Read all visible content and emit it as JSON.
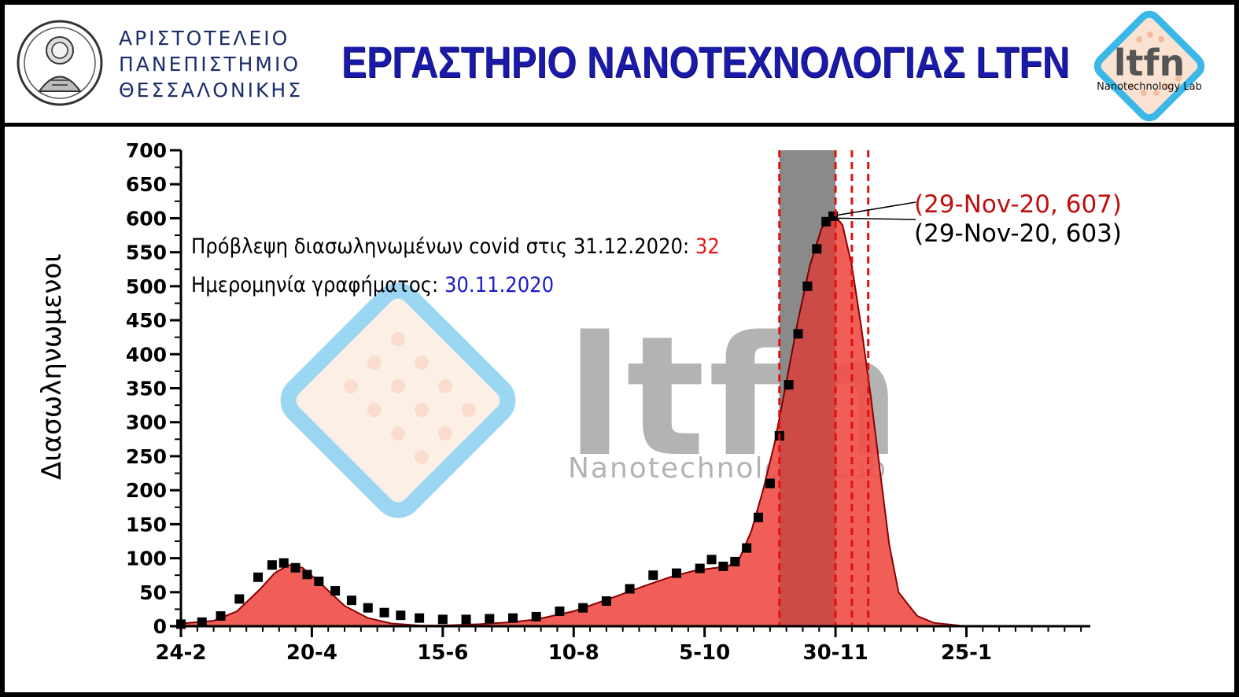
{
  "header": {
    "university_lines": [
      "ΑΡΙΣΤΟΤΕΛΕΙΟ",
      "ΠΑΝΕΠΙΣΤΗΜΙΟ",
      "ΘΕΣΣΑΛΟΝΙΚΗΣ"
    ],
    "lab_title": "ΕΡΓΑΣΤΗΡΙΟ ΝΑΝΟΤΕΧΝΟΛΟΓΙΑΣ LTFN",
    "logo_text": "ltfn",
    "logo_subtext": "Nanotechnology Lab"
  },
  "watermark": {
    "text": "ltfn",
    "subtext": "Nanotechnology Lab"
  },
  "notes": {
    "forecast_label": "Πρόβλεψη διασωληνωμένων covid στις 31.12.2020: ",
    "forecast_value": "32",
    "date_label": "Ημερομηνία γραφήματος: ",
    "date_value": "30.11.2020"
  },
  "colors": {
    "model_fill": "#f0504a",
    "model_line": "#8a0000",
    "data_points": "#000000",
    "highlight_band": "#9e9e9e",
    "vlines": "#e01010",
    "title_blue": "#1a1aa8"
  },
  "chart_data": {
    "type": "area",
    "ylabel": "Διασωληνωμενοι",
    "xlabel": "",
    "ylim": [
      0,
      700
    ],
    "yticks": [
      0,
      50,
      100,
      150,
      200,
      250,
      300,
      350,
      400,
      450,
      500,
      550,
      600,
      650,
      700
    ],
    "xlim": [
      "2020-02-24",
      "2021-03-19"
    ],
    "xticks": [
      {
        "label": "24-2",
        "date": "2020-02-24"
      },
      {
        "label": "20-4",
        "date": "2020-04-20"
      },
      {
        "label": "15-6",
        "date": "2020-06-15"
      },
      {
        "label": "10-8",
        "date": "2020-08-10"
      },
      {
        "label": "5-10",
        "date": "2020-10-05"
      },
      {
        "label": "30-11",
        "date": "2020-11-30"
      },
      {
        "label": "25-1",
        "date": "2021-01-25"
      }
    ],
    "highlight_band": [
      "2020-11-06",
      "2020-11-30"
    ],
    "vlines_dashed": [
      "2020-11-06",
      "2020-11-30",
      "2020-12-07",
      "2020-12-14"
    ],
    "annotations": [
      {
        "text": "(29-Nov-20, 607)",
        "series": "model",
        "date": "2020-11-29",
        "value": 607,
        "color": "#c01010"
      },
      {
        "text": "(29-Nov-20, 603)",
        "series": "data",
        "date": "2020-11-29",
        "value": 603,
        "color": "#000000"
      }
    ],
    "series": [
      {
        "kind": "model_area",
        "points": [
          [
            "2020-02-24",
            4
          ],
          [
            "2020-03-09",
            8
          ],
          [
            "2020-03-19",
            22
          ],
          [
            "2020-03-29",
            55
          ],
          [
            "2020-04-04",
            78
          ],
          [
            "2020-04-10",
            90
          ],
          [
            "2020-04-16",
            86
          ],
          [
            "2020-04-24",
            62
          ],
          [
            "2020-05-04",
            30
          ],
          [
            "2020-05-14",
            12
          ],
          [
            "2020-05-24",
            4
          ],
          [
            "2020-06-05",
            1
          ],
          [
            "2020-06-15",
            1
          ],
          [
            "2020-07-01",
            3
          ],
          [
            "2020-07-15",
            6
          ],
          [
            "2020-07-25",
            10
          ],
          [
            "2020-08-10",
            22
          ],
          [
            "2020-08-25",
            40
          ],
          [
            "2020-09-10",
            60
          ],
          [
            "2020-09-20",
            72
          ],
          [
            "2020-10-01",
            82
          ],
          [
            "2020-10-08",
            85
          ],
          [
            "2020-10-15",
            88
          ],
          [
            "2020-10-20",
            100
          ],
          [
            "2020-10-25",
            140
          ],
          [
            "2020-10-30",
            200
          ],
          [
            "2020-11-04",
            270
          ],
          [
            "2020-11-09",
            360
          ],
          [
            "2020-11-14",
            450
          ],
          [
            "2020-11-19",
            530
          ],
          [
            "2020-11-24",
            585
          ],
          [
            "2020-11-29",
            607
          ],
          [
            "2020-12-03",
            590
          ],
          [
            "2020-12-07",
            530
          ],
          [
            "2020-12-11",
            440
          ],
          [
            "2020-12-15",
            340
          ],
          [
            "2020-12-19",
            230
          ],
          [
            "2020-12-23",
            120
          ],
          [
            "2020-12-27",
            50
          ],
          [
            "2020-12-31",
            32
          ],
          [
            "2021-01-04",
            15
          ],
          [
            "2021-01-11",
            5
          ],
          [
            "2021-01-22",
            1
          ]
        ]
      },
      {
        "kind": "observed",
        "points": [
          [
            "2020-02-24",
            3
          ],
          [
            "2020-03-04",
            6
          ],
          [
            "2020-03-12",
            15
          ],
          [
            "2020-03-20",
            40
          ],
          [
            "2020-03-28",
            72
          ],
          [
            "2020-04-03",
            90
          ],
          [
            "2020-04-08",
            93
          ],
          [
            "2020-04-13",
            86
          ],
          [
            "2020-04-18",
            76
          ],
          [
            "2020-04-23",
            66
          ],
          [
            "2020-04-30",
            52
          ],
          [
            "2020-05-07",
            38
          ],
          [
            "2020-05-14",
            27
          ],
          [
            "2020-05-21",
            20
          ],
          [
            "2020-05-28",
            16
          ],
          [
            "2020-06-05",
            12
          ],
          [
            "2020-06-15",
            10
          ],
          [
            "2020-06-25",
            10
          ],
          [
            "2020-07-05",
            11
          ],
          [
            "2020-07-15",
            12
          ],
          [
            "2020-07-25",
            14
          ],
          [
            "2020-08-04",
            22
          ],
          [
            "2020-08-14",
            27
          ],
          [
            "2020-08-24",
            37
          ],
          [
            "2020-09-03",
            55
          ],
          [
            "2020-09-13",
            75
          ],
          [
            "2020-09-23",
            78
          ],
          [
            "2020-10-03",
            85
          ],
          [
            "2020-10-08",
            98
          ],
          [
            "2020-10-13",
            88
          ],
          [
            "2020-10-18",
            95
          ],
          [
            "2020-10-23",
            115
          ],
          [
            "2020-10-28",
            160
          ],
          [
            "2020-11-02",
            210
          ],
          [
            "2020-11-06",
            280
          ],
          [
            "2020-11-10",
            355
          ],
          [
            "2020-11-14",
            430
          ],
          [
            "2020-11-18",
            500
          ],
          [
            "2020-11-22",
            555
          ],
          [
            "2020-11-26",
            595
          ],
          [
            "2020-11-29",
            603
          ]
        ]
      }
    ]
  }
}
